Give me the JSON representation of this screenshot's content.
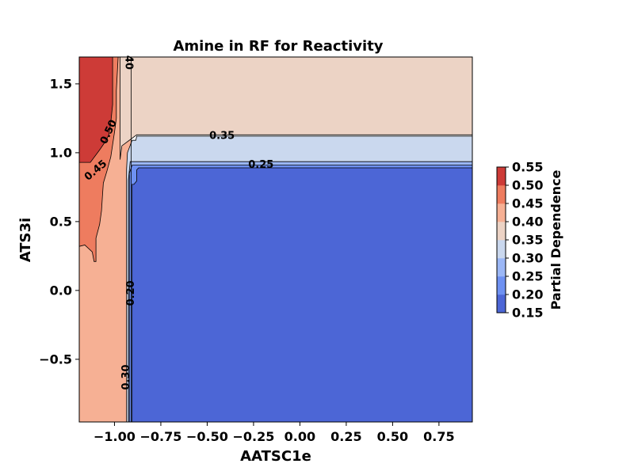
{
  "chart_data": {
    "type": "contour",
    "title": "Amine in RF for Reactivity",
    "xlabel": "AATSC1e",
    "ylabel": "ATS3i",
    "xlim": [
      -1.19,
      0.93
    ],
    "ylim": [
      -0.955,
      1.695
    ],
    "x_ticks": [
      -1.0,
      -0.75,
      -0.5,
      -0.25,
      0.0,
      0.25,
      0.5,
      0.75
    ],
    "x_tick_labels": [
      "−1.00",
      "−0.75",
      "−0.50",
      "−0.25",
      "0.00",
      "0.25",
      "0.50",
      "0.75"
    ],
    "y_ticks": [
      -0.5,
      0.0,
      0.5,
      1.0,
      1.5
    ],
    "y_tick_labels": [
      "−0.5",
      "0.0",
      "0.5",
      "1.0",
      "1.5"
    ],
    "colorbar": {
      "label": "Partial Dependence",
      "levels": [
        0.15,
        0.2,
        0.25,
        0.3,
        0.35,
        0.4,
        0.45,
        0.5,
        0.55
      ],
      "level_labels": [
        "0.15",
        "0.20",
        "0.25",
        "0.30",
        "0.35",
        "0.40",
        "0.45",
        "0.50",
        "0.55"
      ],
      "band_colors": [
        "#4c66d6",
        "#6e91f2",
        "#9bb7f6",
        "#cad8ee",
        "#ecd3c5",
        "#f6b094",
        "#ee7c5f",
        "#cd3b37"
      ]
    },
    "regions": [
      {
        "level": "0.40–0.45",
        "color": "#f6b094",
        "polygon": [
          [
            -1.19,
            -0.955
          ],
          [
            -1.19,
            1.695
          ],
          [
            -0.91,
            1.695
          ],
          [
            -0.91,
            -0.955
          ]
        ]
      },
      {
        "level": "0.35–0.40",
        "color": "#ecd3c5",
        "polygon": [
          [
            -0.97,
            1.695
          ],
          [
            0.93,
            1.695
          ],
          [
            0.93,
            1.13
          ],
          [
            -0.88,
            1.13
          ],
          [
            -0.91,
            1.1
          ],
          [
            -0.96,
            1.05
          ],
          [
            -0.97,
            0.95
          ]
        ]
      },
      {
        "level": "0.30–0.35",
        "color": "#cad8ee",
        "polygon": [
          [
            -0.935,
            -0.955
          ],
          [
            -0.935,
            0.88
          ],
          [
            -0.93,
            1.0
          ],
          [
            -0.905,
            1.09
          ],
          [
            -0.885,
            1.09
          ],
          [
            -0.88,
            1.12
          ],
          [
            0.93,
            1.12
          ],
          [
            0.93,
            -0.955
          ]
        ]
      },
      {
        "level": "0.25–0.30",
        "color": "#9bb7f6",
        "polygon": [
          [
            -0.925,
            -0.955
          ],
          [
            -0.925,
            0.8
          ],
          [
            -0.915,
            0.935
          ],
          [
            0.93,
            0.935
          ],
          [
            0.93,
            -0.955
          ]
        ]
      },
      {
        "level": "0.20–0.25",
        "color": "#6e91f2",
        "polygon": [
          [
            -0.92,
            -0.955
          ],
          [
            -0.92,
            0.85
          ],
          [
            -0.905,
            0.91
          ],
          [
            0.93,
            0.91
          ],
          [
            0.93,
            -0.955
          ]
        ]
      },
      {
        "level": "0.15–0.20",
        "color": "#4c66d6",
        "polygon": [
          [
            -0.905,
            -0.955
          ],
          [
            -0.905,
            0.77
          ],
          [
            -0.895,
            0.77
          ],
          [
            -0.88,
            0.795
          ],
          [
            -0.88,
            0.875
          ],
          [
            -0.87,
            0.89
          ],
          [
            0.93,
            0.89
          ],
          [
            0.93,
            -0.955
          ]
        ]
      },
      {
        "level": "0.45–0.50",
        "color": "#ee7c5f",
        "polygon": [
          [
            -1.19,
            0.32
          ],
          [
            -1.16,
            0.33
          ],
          [
            -1.12,
            0.28
          ],
          [
            -1.11,
            0.21
          ],
          [
            -1.1,
            0.21
          ],
          [
            -1.1,
            0.38
          ],
          [
            -1.08,
            0.48
          ],
          [
            -1.07,
            0.58
          ],
          [
            -1.065,
            0.68
          ],
          [
            -1.06,
            0.78
          ],
          [
            -1.04,
            0.87
          ],
          [
            -1.02,
            0.97
          ],
          [
            -1.0,
            1.15
          ],
          [
            -0.99,
            1.25
          ],
          [
            -0.99,
            1.45
          ],
          [
            -0.98,
            1.695
          ],
          [
            -1.19,
            1.695
          ]
        ]
      },
      {
        "level": "0.50–0.55",
        "color": "#cd3b37",
        "polygon": [
          [
            -1.19,
            0.93
          ],
          [
            -1.13,
            0.93
          ],
          [
            -1.08,
            1.02
          ],
          [
            -1.05,
            1.08
          ],
          [
            -1.03,
            1.13
          ],
          [
            -1.02,
            1.22
          ],
          [
            -1.01,
            1.35
          ],
          [
            -1.01,
            1.695
          ],
          [
            -1.19,
            1.695
          ]
        ]
      }
    ],
    "contour_labels": [
      {
        "text": "0.35",
        "x": -0.42,
        "y": 1.12,
        "rotate": 0
      },
      {
        "text": "0.25",
        "x": -0.21,
        "y": 0.91,
        "rotate": 0
      },
      {
        "text": "0.20",
        "x": -0.91,
        "y": -0.02,
        "rotate": -90
      },
      {
        "text": "0.30",
        "x": -0.935,
        "y": -0.63,
        "rotate": -90
      },
      {
        "text": "0.50",
        "x": -1.03,
        "y": 1.15,
        "rotate": -65
      },
      {
        "text": "0.45",
        "x": -1.1,
        "y": 0.87,
        "rotate": -40
      },
      {
        "text": "40",
        "x": -0.925,
        "y": 1.655,
        "rotate": 90
      }
    ]
  }
}
